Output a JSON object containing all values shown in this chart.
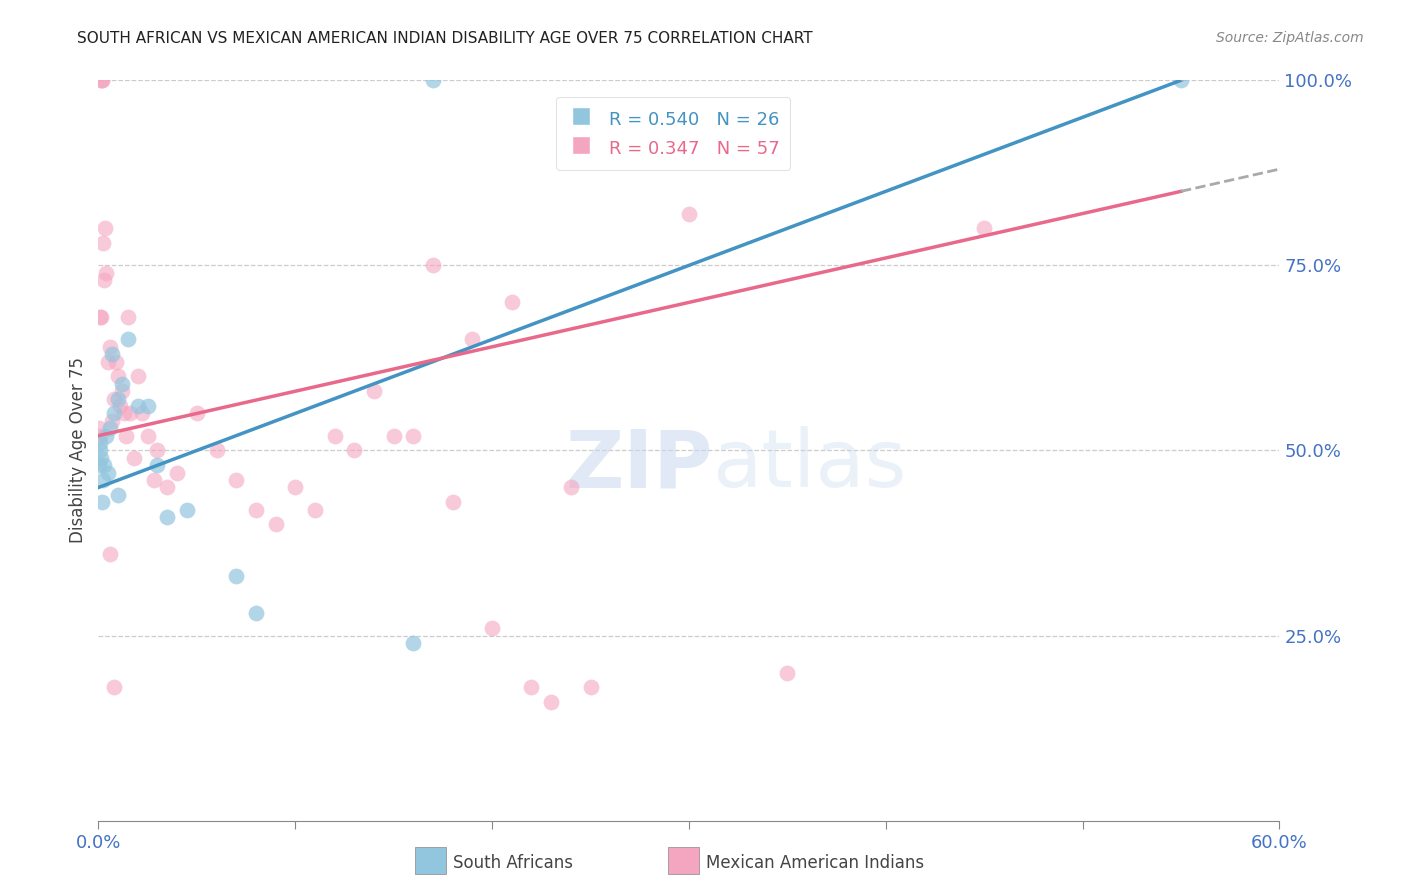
{
  "title": "SOUTH AFRICAN VS MEXICAN AMERICAN INDIAN DISABILITY AGE OVER 75 CORRELATION CHART",
  "source": "Source: ZipAtlas.com",
  "ylabel": "Disability Age Over 75",
  "x_ticks": [
    0.0,
    10.0,
    20.0,
    30.0,
    40.0,
    50.0,
    60.0
  ],
  "y_ticks_right": [
    25.0,
    50.0,
    75.0,
    100.0
  ],
  "legend_blue_R": "0.540",
  "legend_blue_N": "26",
  "legend_pink_R": "0.347",
  "legend_pink_N": "57",
  "blue_color": "#92c5de",
  "pink_color": "#f4a6c0",
  "blue_line_color": "#4393c3",
  "pink_line_color": "#e8698a",
  "right_axis_color": "#4472c4",
  "xmin": 0.0,
  "xmax": 60.0,
  "ymin": 0.0,
  "ymax": 100.0,
  "figwidth": 14.06,
  "figheight": 8.92,
  "blue_x": [
    0.05,
    0.08,
    0.1,
    0.15,
    0.2,
    0.25,
    0.3,
    0.4,
    0.5,
    0.6,
    0.7,
    0.8,
    1.0,
    1.2,
    1.5,
    2.0,
    2.5,
    3.0,
    3.5,
    4.5,
    7.0,
    8.0,
    16.0,
    17.0,
    55.0,
    1.0
  ],
  "blue_y": [
    48.0,
    51.0,
    50.0,
    49.0,
    43.0,
    46.0,
    48.0,
    52.0,
    47.0,
    53.0,
    63.0,
    55.0,
    57.0,
    59.0,
    65.0,
    56.0,
    56.0,
    48.0,
    41.0,
    42.0,
    33.0,
    28.0,
    24.0,
    100.0,
    100.0,
    44.0
  ],
  "pink_x": [
    0.05,
    0.08,
    0.1,
    0.12,
    0.15,
    0.18,
    0.2,
    0.25,
    0.3,
    0.35,
    0.4,
    0.5,
    0.6,
    0.7,
    0.8,
    0.9,
    1.0,
    1.1,
    1.2,
    1.3,
    1.4,
    1.5,
    1.6,
    1.8,
    2.0,
    2.2,
    2.5,
    2.8,
    3.0,
    3.5,
    4.0,
    5.0,
    6.0,
    7.0,
    8.0,
    9.0,
    10.0,
    11.0,
    12.0,
    13.0,
    14.0,
    15.0,
    16.0,
    17.0,
    18.0,
    19.0,
    20.0,
    21.0,
    22.0,
    23.0,
    24.0,
    25.0,
    30.0,
    35.0,
    45.0,
    0.6,
    0.8
  ],
  "pink_y": [
    53.0,
    52.0,
    68.0,
    68.0,
    100.0,
    100.0,
    100.0,
    78.0,
    73.0,
    80.0,
    74.0,
    62.0,
    64.0,
    54.0,
    57.0,
    62.0,
    60.0,
    56.0,
    58.0,
    55.0,
    52.0,
    68.0,
    55.0,
    49.0,
    60.0,
    55.0,
    52.0,
    46.0,
    50.0,
    45.0,
    47.0,
    55.0,
    50.0,
    46.0,
    42.0,
    40.0,
    45.0,
    42.0,
    52.0,
    50.0,
    58.0,
    52.0,
    52.0,
    75.0,
    43.0,
    65.0,
    26.0,
    70.0,
    18.0,
    16.0,
    45.0,
    18.0,
    82.0,
    20.0,
    80.0,
    36.0,
    18.0
  ]
}
